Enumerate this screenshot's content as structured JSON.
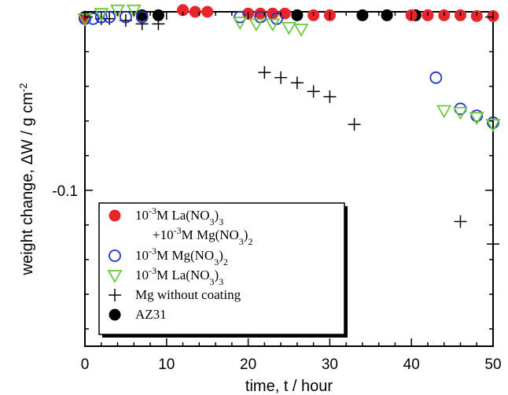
{
  "chart_data": {
    "type": "scatter",
    "xlabel": "time,  t / hour",
    "ylabel": "weight change,  ΔW / g cm",
    "ylabel_sup": "-2",
    "xlim": [
      0,
      50
    ],
    "ylim": [
      -0.19,
      0.003
    ],
    "x_ticks": [
      0,
      10,
      20,
      30,
      40,
      50
    ],
    "x_tick_labels": [
      "0",
      "10",
      "20",
      "30",
      "40",
      "50"
    ],
    "y_ticks": [
      -0.1
    ],
    "y_tick_labels": [
      "-0.1"
    ],
    "legend_placement": "bottom-left",
    "series": [
      {
        "legend_lines": [
          [
            {
              "t": "10"
            },
            {
              "t": "-3",
              "s": "sup"
            },
            {
              "t": "M La(NO"
            },
            {
              "t": "3",
              "s": "sub"
            },
            {
              "t": ")"
            },
            {
              "t": "3",
              "s": "sub"
            }
          ],
          [
            {
              "t": "+10"
            },
            {
              "t": "-3",
              "s": "sup"
            },
            {
              "t": "M Mg(NO"
            },
            {
              "t": "3",
              "s": "sub"
            },
            {
              "t": ")"
            },
            {
              "t": "2",
              "s": "sub"
            }
          ]
        ],
        "marker": "filled-circle",
        "color": "#e8252a",
        "x": [
          0,
          12,
          13.5,
          15,
          20,
          21.5,
          23,
          24.5,
          28,
          30,
          40,
          42,
          44,
          46,
          48,
          50
        ],
        "y": [
          -0.001,
          0.004,
          0.003,
          0.003,
          0.002,
          0.002,
          0.002,
          0.002,
          0.001,
          0.001,
          0.001,
          0.001,
          0.001,
          0.001,
          0.0005,
          0.0005
        ]
      },
      {
        "legend_lines": [
          [
            {
              "t": "10"
            },
            {
              "t": "-3",
              "s": "sup"
            },
            {
              "t": "M Mg(NO"
            },
            {
              "t": "3",
              "s": "sub"
            },
            {
              "t": ")"
            },
            {
              "t": "2",
              "s": "sub"
            }
          ]
        ],
        "marker": "open-circle",
        "color": "#1f33c8",
        "x": [
          0,
          1,
          2,
          3,
          5,
          7,
          19,
          21.5,
          23.5,
          43,
          46,
          48,
          50
        ],
        "y": [
          -0.001,
          -0.001,
          0.0,
          0.0,
          0.0,
          0.0,
          0.0,
          0.0,
          -0.001,
          -0.035,
          -0.053,
          -0.057,
          -0.061
        ]
      },
      {
        "legend_lines": [
          [
            {
              "t": "10"
            },
            {
              "t": "-3",
              "s": "sup"
            },
            {
              "t": "M La(NO"
            },
            {
              "t": "3",
              "s": "sub"
            },
            {
              "t": ")"
            },
            {
              "t": "3",
              "s": "sub"
            }
          ]
        ],
        "marker": "open-triangle-down",
        "color": "#6cc640",
        "x": [
          0,
          2,
          4,
          6,
          19,
          21,
          23,
          25,
          26.5
        ],
        "y": [
          -0.001,
          0.002,
          0.004,
          0.004,
          -0.003,
          -0.004,
          -0.004,
          -0.006,
          -0.007
        ],
        "x2": [
          44,
          46,
          48,
          50
        ],
        "y2": [
          -0.054,
          -0.055,
          -0.058,
          -0.062
        ]
      },
      {
        "legend_lines": [
          [
            {
              "t": "Mg without coating"
            }
          ]
        ],
        "marker": "plus",
        "color": "#000000",
        "x": [
          0,
          2,
          3,
          5,
          7,
          9,
          22,
          24,
          26,
          28,
          30,
          33,
          46,
          50
        ],
        "y": [
          0,
          -0.001,
          -0.001,
          -0.002,
          -0.004,
          -0.004,
          -0.032,
          -0.035,
          -0.038,
          -0.043,
          -0.046,
          -0.062,
          -0.118,
          -0.131
        ]
      },
      {
        "legend_lines": [
          [
            {
              "t": "AZ31"
            }
          ]
        ],
        "marker": "filled-circle",
        "color": "#000000",
        "x": [
          0,
          7,
          9,
          26,
          34,
          37,
          40.5
        ],
        "y": [
          0,
          0.001,
          0.001,
          0.001,
          0.001,
          0.001,
          0.001
        ]
      }
    ]
  }
}
